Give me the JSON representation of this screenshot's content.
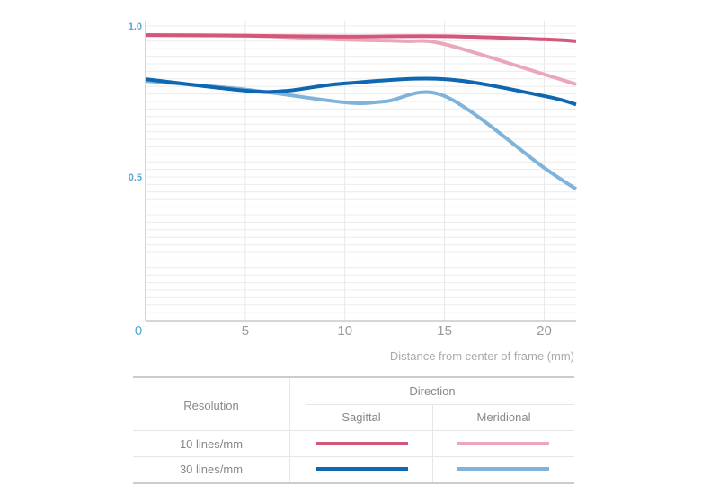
{
  "chart_data": {
    "type": "line",
    "title": "",
    "xlabel": "Distance from center of frame (mm)",
    "ylabel": "",
    "xlim": [
      0,
      21.6
    ],
    "ylim": [
      0,
      1.0
    ],
    "x_ticks": [
      0,
      5,
      10,
      15,
      20
    ],
    "x_tick_labels": [
      "0",
      "5",
      "10",
      "15",
      "20"
    ],
    "y_ticks": [
      0.5,
      1.0
    ],
    "y_tick_labels": [
      "0.5",
      "1.0"
    ],
    "grid": true,
    "series": [
      {
        "name": "10 lines/mm Sagittal",
        "color": "#d4567a",
        "x": [
          0,
          5,
          10,
          15,
          20,
          21.6
        ],
        "y": [
          0.97,
          0.968,
          0.965,
          0.966,
          0.956,
          0.95
        ]
      },
      {
        "name": "10 lines/mm Meridional",
        "color": "#e9a7b9",
        "x": [
          0,
          5,
          10,
          13,
          15,
          20,
          21.6
        ],
        "y": [
          0.97,
          0.968,
          0.955,
          0.95,
          0.94,
          0.84,
          0.807
        ]
      },
      {
        "name": "30 lines/mm Sagittal",
        "color": "#0f67b1",
        "x": [
          0,
          5,
          7,
          10,
          15,
          20,
          21.6
        ],
        "y": [
          0.824,
          0.786,
          0.785,
          0.81,
          0.824,
          0.768,
          0.74
        ]
      },
      {
        "name": "30 lines/mm Meridional",
        "color": "#7eb3db",
        "x": [
          0,
          5,
          10,
          12,
          15,
          20,
          21.6
        ],
        "y": [
          0.818,
          0.79,
          0.747,
          0.75,
          0.768,
          0.53,
          0.46
        ]
      }
    ]
  },
  "legend_table": {
    "resolution_header": "Resolution",
    "direction_header": "Direction",
    "sagittal": "Sagittal",
    "meridional": "Meridional",
    "rows": [
      {
        "label": "10 lines/mm",
        "sagittal_color": "#d4567a",
        "meridional_color": "#e9a7b9"
      },
      {
        "label": "30 lines/mm",
        "sagittal_color": "#0f67b1",
        "meridional_color": "#7eb3db"
      }
    ]
  }
}
